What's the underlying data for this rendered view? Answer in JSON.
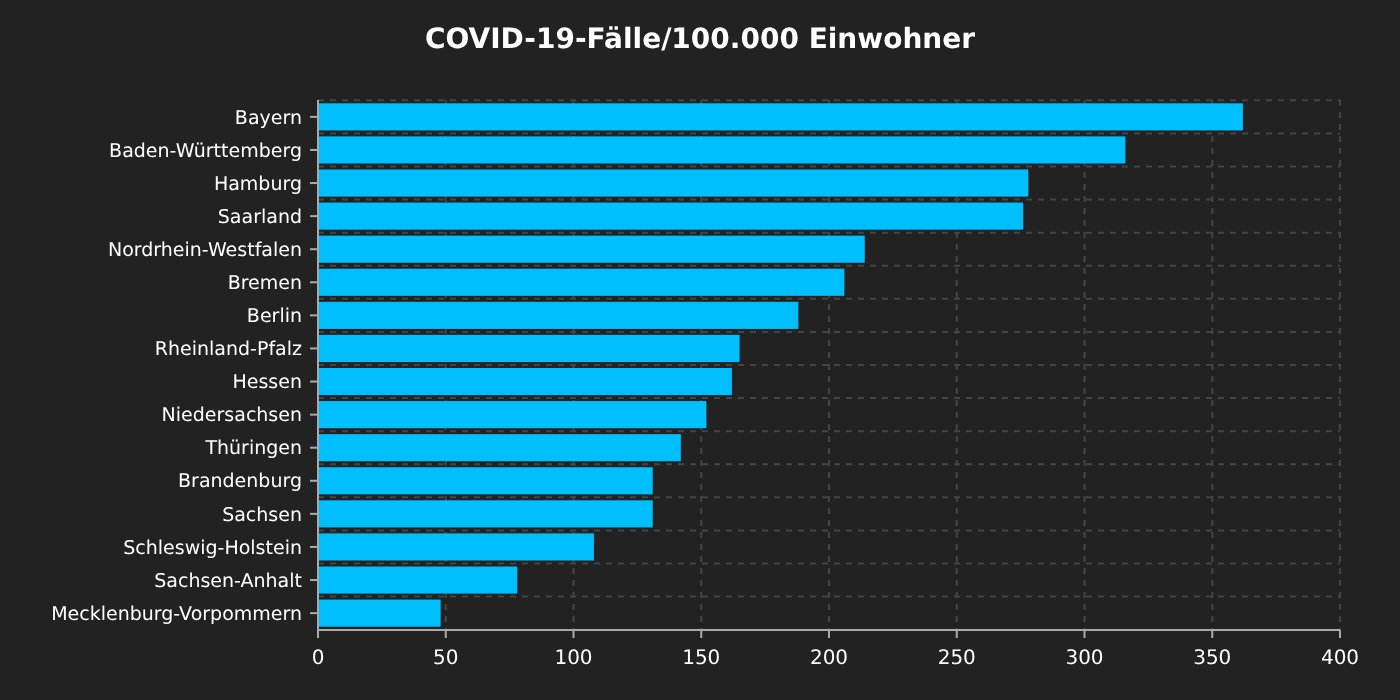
{
  "chart_data": {
    "type": "bar",
    "orientation": "horizontal",
    "title": "COVID-19-Fälle/100.000 Einwohner",
    "categories": [
      "Bayern",
      "Baden-Württemberg",
      "Hamburg",
      "Saarland",
      "Nordrhein-Westfalen",
      "Bremen",
      "Berlin",
      "Rheinland-Pfalz",
      "Hessen",
      "Niedersachsen",
      "Thüringen",
      "Brandenburg",
      "Sachsen",
      "Schleswig-Holstein",
      "Sachsen-Anhalt",
      "Mecklenburg-Vorpommern"
    ],
    "values": [
      362,
      316,
      278,
      276,
      214,
      206,
      188,
      165,
      162,
      152,
      142,
      131,
      131,
      108,
      78,
      48
    ],
    "color": "#00bfff",
    "xlim": [
      0,
      400
    ],
    "xticks": [
      0,
      50,
      100,
      150,
      200,
      250,
      300,
      350,
      400
    ],
    "grid": true
  }
}
